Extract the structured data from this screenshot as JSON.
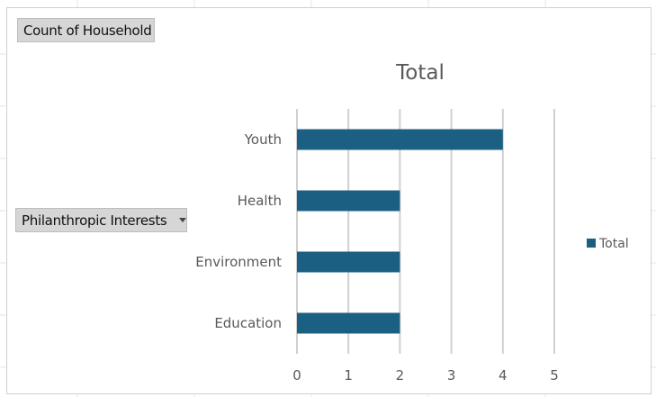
{
  "pivot": {
    "value_field": "Count of Household",
    "axis_field": "Philanthropic Interests"
  },
  "colors": {
    "bar": "#1b5f82",
    "gridline": "#d0d0d0",
    "text": "#595959",
    "title": "#595959"
  },
  "chart_data": {
    "type": "bar",
    "orientation": "horizontal",
    "title": "Total",
    "categories": [
      "Youth",
      "Health",
      "Environment",
      "Education"
    ],
    "series": [
      {
        "name": "Total",
        "values": [
          4,
          2,
          2,
          2
        ]
      }
    ],
    "xlim": [
      0,
      5
    ],
    "xticks": [
      "0",
      "1",
      "2",
      "3",
      "4",
      "5"
    ],
    "grid": true,
    "legend": "right"
  }
}
